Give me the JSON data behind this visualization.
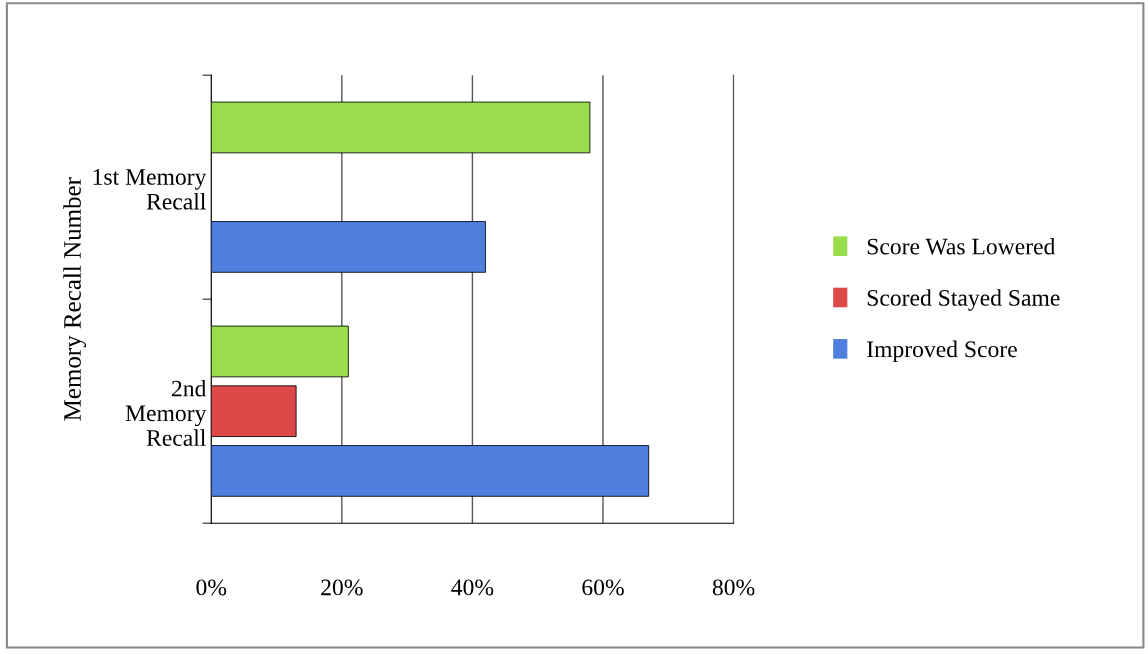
{
  "chart_data": {
    "type": "bar",
    "orientation": "horizontal",
    "ylabel": "Memory Recall Number",
    "categories": [
      "1st Memory\nRecall",
      "2nd\nMemory\nRecall"
    ],
    "series": [
      {
        "name": "Improved Score",
        "color": "#4f7fdf",
        "values": [
          42,
          67
        ]
      },
      {
        "name": "Scored Stayed Same",
        "color": "#dd4848",
        "values": [
          null,
          13
        ]
      },
      {
        "name": "Score Was Lowered",
        "color": "#99dd4c",
        "values": [
          58,
          21
        ]
      }
    ],
    "xlim": [
      0,
      80
    ],
    "xticks": [
      {
        "value": 0,
        "label": "0%"
      },
      {
        "value": 20,
        "label": "20%"
      },
      {
        "value": 40,
        "label": "40%"
      },
      {
        "value": 60,
        "label": "60%"
      },
      {
        "value": 80,
        "label": "80%"
      }
    ],
    "grid": "x",
    "legend": "right"
  }
}
